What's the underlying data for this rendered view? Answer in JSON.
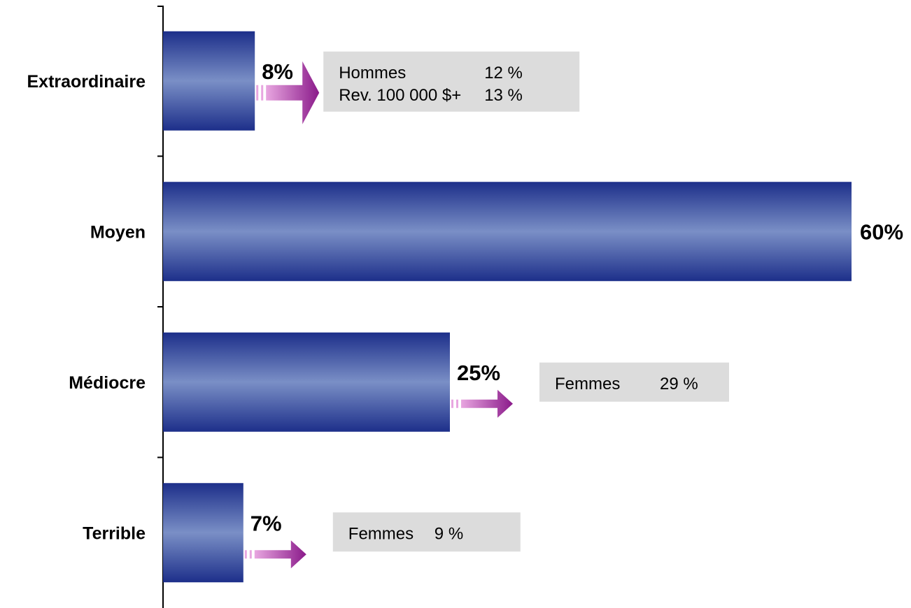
{
  "chart_data": {
    "type": "bar",
    "orientation": "horizontal",
    "categories": [
      "Extraordinaire",
      "Moyen",
      "Médiocre",
      "Terrible"
    ],
    "values": [
      8,
      60,
      25,
      7
    ],
    "value_labels": [
      "8%",
      "60%",
      "25%",
      "7%"
    ],
    "xlim": [
      0,
      60
    ],
    "grid": false,
    "legend": "none",
    "annotations": [
      {
        "category": "Extraordinaire",
        "rows": [
          [
            "Hommes",
            "12 %"
          ],
          [
            "Rev. 100 000 $+",
            "13 %"
          ]
        ]
      },
      {
        "category": "Médiocre",
        "rows": [
          [
            "Femmes",
            "29 %"
          ]
        ]
      },
      {
        "category": "Terrible",
        "rows": [
          [
            "Femmes",
            "9 %"
          ]
        ]
      }
    ]
  },
  "colors": {
    "bar_edge": "#1d2f8a",
    "bar_mid": "#7a8fc6",
    "arrow_start": "#e8a6e0",
    "arrow_end": "#8a1a8a",
    "note_bg": "#dcdcdc",
    "axis": "#000000"
  }
}
